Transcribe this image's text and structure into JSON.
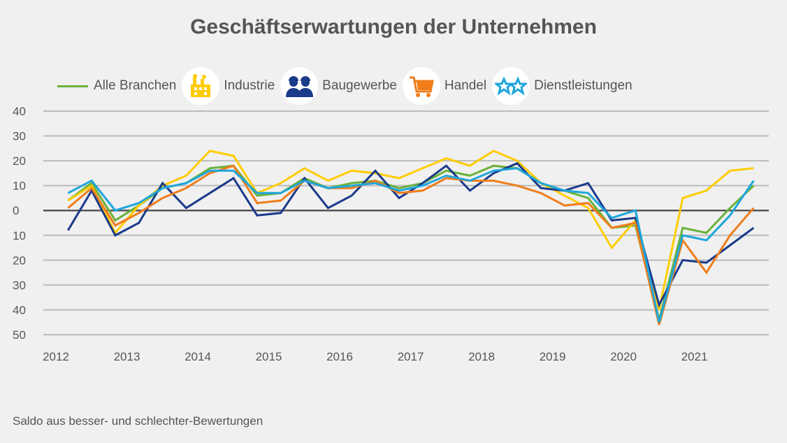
{
  "title": "Geschäftserwartungen der Unternehmen",
  "footnote": "Saldo aus besser- und schlechter-Bewertungen",
  "legend": [
    {
      "label": "Alle Branchen",
      "icon": "line-swatch"
    },
    {
      "label": "Industrie",
      "icon": "factory-icon"
    },
    {
      "label": "Baugewerbe",
      "icon": "workers-icon"
    },
    {
      "label": "Handel",
      "icon": "shopping-cart-icon"
    },
    {
      "label": "Dienstleistungen",
      "icon": "stars-icon"
    }
  ],
  "chart_data": {
    "type": "line",
    "title": "Geschäftserwartungen der Unternehmen",
    "xlabel": "",
    "ylabel": "Saldo aus besser- und schlechter-Bewertungen",
    "x_start": 2012.17,
    "x_step": 0.3333,
    "xlim": [
      2012,
      2022
    ],
    "ylim": [
      -50,
      40
    ],
    "x_ticks": [
      "2012",
      "2013",
      "2014",
      "2015",
      "2016",
      "2017",
      "2018",
      "2019",
      "2020",
      "2021"
    ],
    "y_ticks": [
      {
        "v": 40,
        "label": "40"
      },
      {
        "v": 30,
        "label": "30"
      },
      {
        "v": 20,
        "label": "20"
      },
      {
        "v": 10,
        "label": "10"
      },
      {
        "v": 0,
        "label": "0"
      },
      {
        "v": -10,
        "label": "10"
      },
      {
        "v": -20,
        "label": "20"
      },
      {
        "v": -30,
        "label": "30"
      },
      {
        "v": -40,
        "label": "40"
      },
      {
        "v": -50,
        "label": "50"
      }
    ],
    "grid": true,
    "series": [
      {
        "name": "Alle Branchen",
        "color": "#6ab23a",
        "values": [
          4,
          11,
          -4,
          2,
          9,
          11,
          17,
          18,
          6,
          7,
          13,
          9,
          11,
          12,
          9,
          11,
          16,
          14,
          18,
          17,
          11,
          8,
          5,
          -7,
          -6,
          -44,
          -7,
          -9,
          1,
          10
        ]
      },
      {
        "name": "Industrie",
        "color": "#ffcc00",
        "values": [
          4,
          10,
          -9,
          2,
          10,
          14,
          24,
          22,
          7,
          11,
          17,
          12,
          16,
          15,
          13,
          17,
          21,
          18,
          24,
          20,
          11,
          6,
          1,
          -15,
          -4,
          -40,
          5,
          8,
          16,
          17
        ]
      },
      {
        "name": "Baugewerbe",
        "color": "#1a3a8a",
        "values": [
          -8,
          8,
          -10,
          -5,
          11,
          1,
          7,
          13,
          -2,
          -1,
          13,
          1,
          6,
          16,
          5,
          11,
          18,
          8,
          15,
          19,
          9,
          8,
          11,
          -4,
          -3,
          -38,
          -20,
          -21,
          -14,
          -7
        ]
      },
      {
        "name": "Handel",
        "color": "#f07d1a",
        "values": [
          1,
          9,
          -6,
          -1,
          5,
          9,
          15,
          18,
          3,
          4,
          12,
          9,
          9,
          12,
          7,
          8,
          13,
          12,
          12,
          10,
          7,
          2,
          3,
          -7,
          -5,
          -46,
          -12,
          -25,
          -10,
          1
        ]
      },
      {
        "name": "Dienstleistungen",
        "color": "#1ea6dc",
        "values": [
          7,
          12,
          0,
          3,
          9,
          11,
          16,
          16,
          7,
          7,
          12,
          9,
          10,
          11,
          8,
          10,
          14,
          12,
          16,
          17,
          11,
          8,
          7,
          -3,
          0,
          -45,
          -10,
          -12,
          -2,
          12
        ]
      }
    ]
  }
}
